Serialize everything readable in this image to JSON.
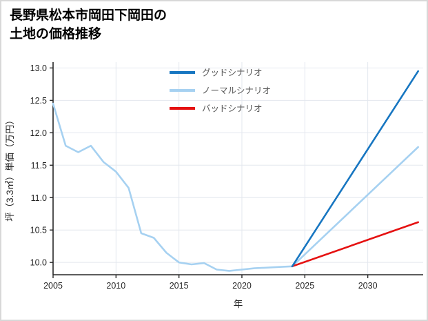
{
  "title": {
    "line1": "長野県松本市岡田下岡田の",
    "line2": "土地の価格推移"
  },
  "chart_data": {
    "type": "line",
    "title": "長野県松本市岡田下岡田の土地の価格推移",
    "xlabel": "年",
    "ylabel": "坪（3.3㎡）単価（万円）",
    "xlim": [
      2005,
      2034.4
    ],
    "ylim": [
      9.81,
      13.09
    ],
    "x_ticks": [
      2005,
      2010,
      2015,
      2020,
      2025,
      2030
    ],
    "x_tick_labels": [
      "2005",
      "2010",
      "2015",
      "2020",
      "2025",
      "2030"
    ],
    "y_ticks": [
      10.0,
      10.5,
      11.0,
      11.5,
      12.0,
      12.5,
      13.0
    ],
    "y_tick_labels": [
      "10.0",
      "10.5",
      "11.0",
      "11.5",
      "12.0",
      "12.5",
      "13.0"
    ],
    "grid": true,
    "grid_color": "#e3e7ee",
    "axis_color": "#262626",
    "legend_position": "top-center",
    "series": [
      {
        "id": "good-scenario",
        "name": "グッドシナリオ",
        "color": "#1776c1",
        "z": 3,
        "x": [
          2024,
          2034
        ],
        "y": [
          9.94,
          12.95
        ]
      },
      {
        "id": "normal-scenario",
        "name": "ノーマルシナリオ",
        "color": "#a6d1f1",
        "z": 1,
        "x": [
          2005,
          2006,
          2007,
          2008,
          2009,
          2010,
          2011,
          2012,
          2013,
          2014,
          2015,
          2016,
          2017,
          2018,
          2019,
          2020,
          2021,
          2022,
          2023,
          2024,
          2034
        ],
        "y": [
          12.45,
          11.8,
          11.7,
          11.8,
          11.55,
          11.4,
          11.15,
          10.45,
          10.38,
          10.15,
          10.0,
          9.97,
          9.99,
          9.89,
          9.87,
          9.89,
          9.91,
          9.92,
          9.93,
          9.94,
          11.78
        ]
      },
      {
        "id": "bad-scenario",
        "name": "バッドシナリオ",
        "color": "#e51111",
        "z": 2,
        "x": [
          2024,
          2034
        ],
        "y": [
          9.94,
          10.62
        ]
      }
    ]
  }
}
